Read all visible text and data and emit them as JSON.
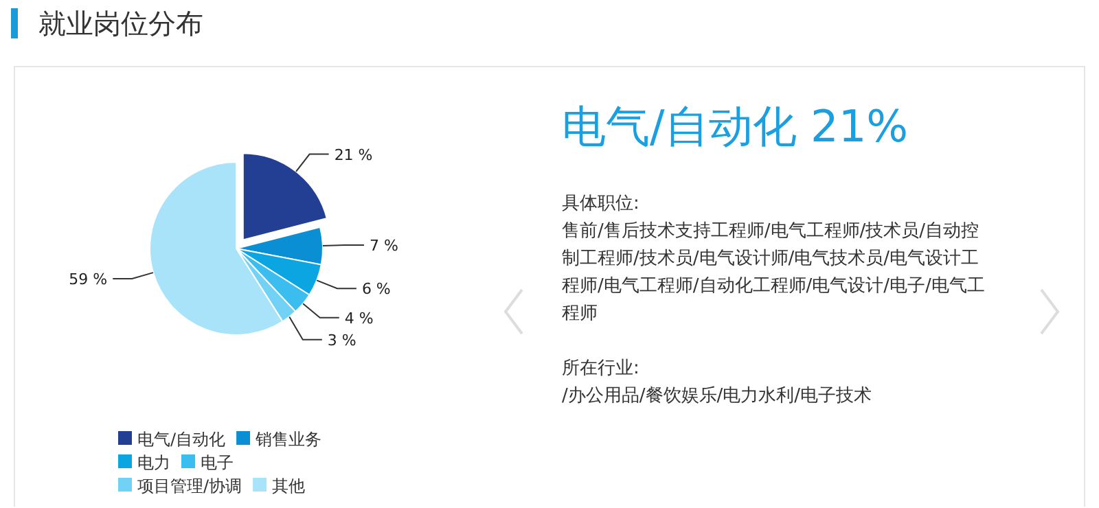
{
  "chart_data": [
    {
      "type": "pie",
      "title": "就业岗位分布",
      "categories": [
        "电气/自动化",
        "销售业务",
        "电力",
        "电子",
        "项目管理/协调",
        "其他"
      ],
      "values": [
        21,
        7,
        6,
        4,
        3,
        59
      ],
      "colors": [
        "#233f94",
        "#0b8fd4",
        "#0ba6e2",
        "#3bbdf0",
        "#72d2f5",
        "#a9e3fa"
      ],
      "value_labels": [
        "21 %",
        "7 %",
        "6 %",
        "4 %",
        "3 %",
        "59 %"
      ],
      "legend": "bottom left"
    },
    {
      "type": "other",
      "title": "电气/自动化 21%",
      "annotations": [
        "具体职位:",
        "售前/售后技术支持工程师/电气工程师/技术员/自动控制工程师/技术员/电气设计师/电气技术员/电气设计工程师/电气工程师/自动化工程师/电气设计/电子/电气工程师",
        "所在行业:",
        "/办公用品/餐饮娱乐/电力水利/电子技术"
      ]
    }
  ]
}
